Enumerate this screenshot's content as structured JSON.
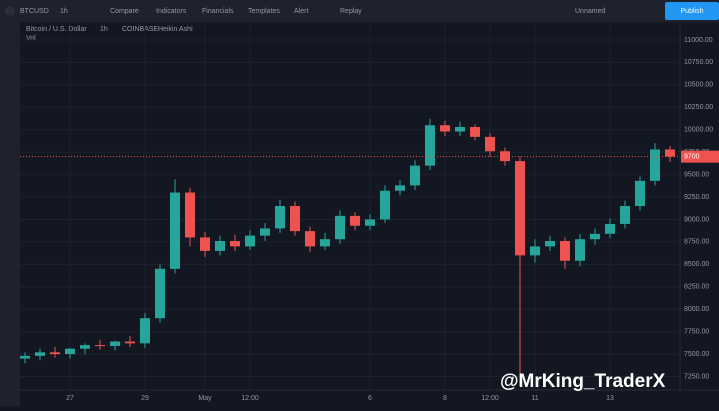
{
  "toolbar": {
    "symbol": "BTCUSD",
    "interval": "1h",
    "items": [
      "Compare",
      "Indicators",
      "Financials",
      "Templates",
      "Alert",
      "Replay"
    ],
    "layout": "Unnamed",
    "publish": "Publish"
  },
  "chart_data": {
    "type": "candlestick",
    "title": "Bitcoin / U.S. Dollar",
    "subtitle": [
      "1h",
      "COINBASE",
      "Heikin Ashi"
    ],
    "volume_label": "Vol",
    "watermark": "@MrKing_TraderX",
    "categories": [
      null,
      null,
      null,
      "27",
      null,
      null,
      null,
      null,
      "29",
      null,
      null,
      null,
      "May",
      null,
      null,
      "12:00",
      null,
      null,
      null,
      null,
      null,
      null,
      null,
      "6",
      null,
      null,
      null,
      null,
      "8",
      null,
      null,
      "12:00",
      null,
      null,
      "11",
      null,
      null,
      null,
      null,
      "13",
      null,
      null,
      null,
      null
    ],
    "series": [
      {
        "name": "BTCUSD",
        "open": [
          7450,
          7480,
          7520,
          7500,
          7560,
          7600,
          7590,
          7640,
          7620,
          7900,
          8450,
          9300,
          8800,
          8650,
          8760,
          8700,
          8820,
          8900,
          9150,
          8870,
          8700,
          8780,
          9040,
          8930,
          9000,
          9320,
          9380,
          9600,
          10050,
          9980,
          10030,
          9920,
          9760,
          9650,
          8600,
          8700,
          8760,
          8540,
          8780,
          8840,
          8950,
          9150,
          9430,
          9780
        ],
        "high": [
          7520,
          7560,
          7580,
          7570,
          7620,
          7660,
          7650,
          7700,
          7960,
          8500,
          9450,
          9350,
          8860,
          8820,
          8830,
          8880,
          8960,
          9220,
          9200,
          8920,
          8850,
          9100,
          9080,
          9060,
          9380,
          9440,
          9660,
          10120,
          10100,
          10090,
          10060,
          9960,
          9800,
          9700,
          8780,
          8820,
          8800,
          8840,
          8900,
          9010,
          9210,
          9480,
          9850,
          9820
        ],
        "low": [
          7400,
          7430,
          7460,
          7450,
          7500,
          7550,
          7540,
          7580,
          7570,
          7850,
          8400,
          8700,
          8580,
          8600,
          8650,
          8660,
          8760,
          8850,
          8820,
          8640,
          8660,
          8730,
          8880,
          8880,
          8960,
          9270,
          9330,
          9550,
          9930,
          9930,
          9880,
          9700,
          9600,
          7150,
          8520,
          8650,
          8450,
          8480,
          8720,
          8790,
          8900,
          9100,
          9380,
          9640
        ],
        "close": [
          7480,
          7520,
          7500,
          7560,
          7600,
          7590,
          7640,
          7620,
          7900,
          8450,
          9300,
          8800,
          8650,
          8760,
          8700,
          8820,
          8900,
          9150,
          8870,
          8700,
          8780,
          9040,
          8930,
          9000,
          9320,
          9380,
          9600,
          10050,
          9980,
          10030,
          9920,
          9760,
          9650,
          8600,
          8700,
          8760,
          8540,
          8780,
          8840,
          8950,
          9150,
          9430,
          9780,
          9700
        ]
      }
    ],
    "up_color": "#26a69a",
    "down_color": "#ef5350",
    "ylim": [
      7100,
      11200
    ],
    "yticks": [
      {
        "value": 7250,
        "label": "7250.00"
      },
      {
        "value": 7500,
        "label": "7500.00"
      },
      {
        "value": 7750,
        "label": "7750.00"
      },
      {
        "value": 8000,
        "label": "8000.00"
      },
      {
        "value": 8250,
        "label": "8250.00"
      },
      {
        "value": 8500,
        "label": "8500.00"
      },
      {
        "value": 8750,
        "label": "8750.00"
      },
      {
        "value": 9000,
        "label": "9000.00"
      },
      {
        "value": 9250,
        "label": "9250.00"
      },
      {
        "value": 9500,
        "label": "9500.00"
      },
      {
        "value": 9750,
        "label": "9750.00"
      },
      {
        "value": 10000,
        "label": "10000.00"
      },
      {
        "value": 10250,
        "label": "10250.00"
      },
      {
        "value": 10500,
        "label": "10500.00"
      },
      {
        "value": 10750,
        "label": "10750.00"
      },
      {
        "value": 11000,
        "label": "11000.00"
      }
    ],
    "grid": true
  }
}
